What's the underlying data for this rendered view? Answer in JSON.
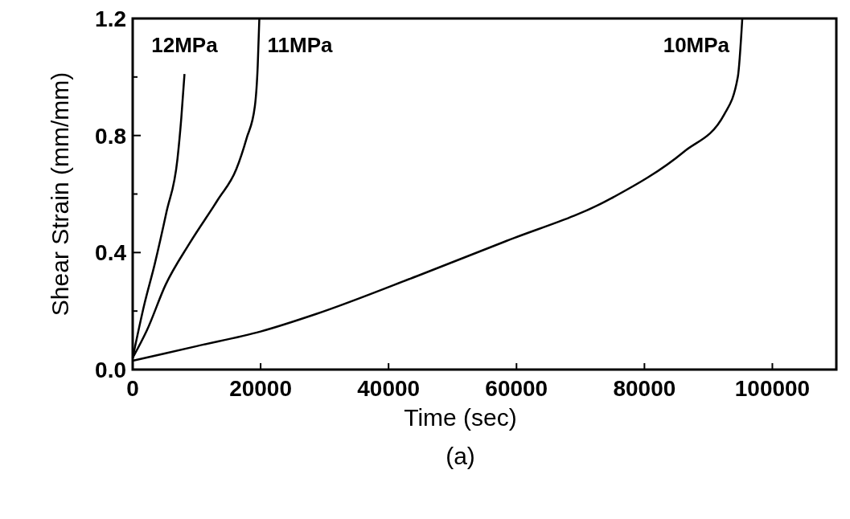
{
  "chart_data": {
    "type": "line",
    "xlabel": "Time (sec)",
    "ylabel": "Shear Strain (mm/mm)",
    "annotations": [
      "(a)"
    ],
    "xlim": [
      0,
      110000
    ],
    "xticks": [
      0,
      20000,
      40000,
      60000,
      80000,
      100000
    ],
    "ylim": [
      0,
      1.2
    ],
    "yticks": [
      {
        "value": 0,
        "label": "0.0"
      },
      {
        "value": 0.2,
        "label": null
      },
      {
        "value": 0.4,
        "label": "0.4"
      },
      {
        "value": 0.6,
        "label": null
      },
      {
        "value": 0.8,
        "label": "0.8"
      },
      {
        "value": 1.0,
        "label": null
      },
      {
        "value": 1.2,
        "label": "1.2"
      }
    ],
    "grid": false,
    "marker": "none",
    "line_style": "solid",
    "series": [
      {
        "name": "12MPa",
        "color": "#000000",
        "x": [
          0,
          1845,
          3440,
          5300,
          7000,
          7600,
          8100
        ],
        "values": [
          0.04,
          0.225,
          0.36,
          0.54,
          0.72,
          0.86,
          1.01
        ]
      },
      {
        "name": "11MPa",
        "color": "#000000",
        "x": [
          0,
          2200,
          5150,
          8850,
          13300,
          16200,
          17800,
          19100,
          19550,
          19800
        ],
        "values": [
          0.04,
          0.133,
          0.29,
          0.43,
          0.58,
          0.685,
          0.79,
          0.9,
          1.04,
          1.2
        ]
      },
      {
        "name": "10MPa",
        "color": "#000000",
        "x": [
          0,
          10000,
          20000,
          28700,
          44500,
          58000,
          74800,
          86200,
          92500,
          94600,
          95300
        ],
        "values": [
          0.03,
          0.08,
          0.13,
          0.19,
          0.32,
          0.436,
          0.585,
          0.745,
          0.873,
          1.0,
          1.2
        ]
      }
    ]
  }
}
